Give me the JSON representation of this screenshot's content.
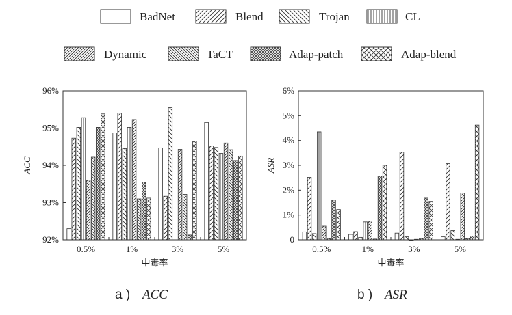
{
  "legend": [
    {
      "label": "BadNet",
      "pattern": "empty"
    },
    {
      "label": "Blend",
      "pattern": "diag-up"
    },
    {
      "label": "Trojan",
      "pattern": "diag-down"
    },
    {
      "label": "CL",
      "pattern": "vertical"
    },
    {
      "label": "Dynamic",
      "pattern": "diag-up-dense"
    },
    {
      "label": "TaCT",
      "pattern": "diag-down-dense"
    },
    {
      "label": "Adap-patch",
      "pattern": "cross-dense"
    },
    {
      "label": "Adap-blend",
      "pattern": "cross"
    }
  ],
  "chart_data": [
    {
      "type": "bar",
      "caption_letter": "a )",
      "caption_text": "ACC",
      "xlabel": "中毒率",
      "ylabel": "ACC",
      "categories": [
        "0.5%",
        "1%",
        "3%",
        "5%"
      ],
      "ylim": [
        92,
        96
      ],
      "yticks": [
        "92%",
        "93%",
        "94%",
        "95%",
        "96%"
      ],
      "series": [
        {
          "name": "BadNet",
          "values": [
            92.3,
            94.87,
            94.47,
            95.15
          ]
        },
        {
          "name": "Blend",
          "values": [
            94.73,
            95.4,
            93.17,
            94.52
          ]
        },
        {
          "name": "Trojan",
          "values": [
            95.02,
            94.45,
            95.55,
            94.48
          ]
        },
        {
          "name": "CL",
          "values": [
            95.28,
            95.02,
            null,
            94.32
          ]
        },
        {
          "name": "Dynamic",
          "values": [
            93.6,
            95.23,
            94.43,
            94.6
          ]
        },
        {
          "name": "TaCT",
          "values": [
            94.22,
            93.1,
            93.22,
            94.42
          ]
        },
        {
          "name": "Adap-patch",
          "values": [
            95.02,
            93.55,
            92.13,
            94.13
          ]
        },
        {
          "name": "Adap-blend",
          "values": [
            95.38,
            93.12,
            94.65,
            94.25
          ]
        }
      ]
    },
    {
      "type": "bar",
      "caption_letter": "b )",
      "caption_text": "ASR",
      "xlabel": "中毒率",
      "ylabel": "ASR",
      "categories": [
        "0.5%",
        "1%",
        "3%",
        "5%"
      ],
      "ylim": [
        0,
        6
      ],
      "yticks": [
        "0",
        "1%",
        "2%",
        "3%",
        "4%",
        "5%",
        "6%"
      ],
      "series": [
        {
          "name": "BadNet",
          "values": [
            0.32,
            0.22,
            0.27,
            0.12
          ]
        },
        {
          "name": "Blend",
          "values": [
            2.52,
            0.33,
            3.53,
            3.07
          ]
        },
        {
          "name": "Trojan",
          "values": [
            0.25,
            0.1,
            0.12,
            0.37
          ]
        },
        {
          "name": "CL",
          "values": [
            4.35,
            0.72,
            0.0,
            0.02
          ]
        },
        {
          "name": "Dynamic",
          "values": [
            0.55,
            0.75,
            0.02,
            1.88
          ]
        },
        {
          "name": "TaCT",
          "values": [
            0.05,
            0.03,
            0.05,
            0.05
          ]
        },
        {
          "name": "Adap-patch",
          "values": [
            1.6,
            2.57,
            1.68,
            0.15
          ]
        },
        {
          "name": "Adap-blend",
          "values": [
            1.22,
            3.0,
            1.55,
            4.62
          ]
        }
      ]
    }
  ]
}
